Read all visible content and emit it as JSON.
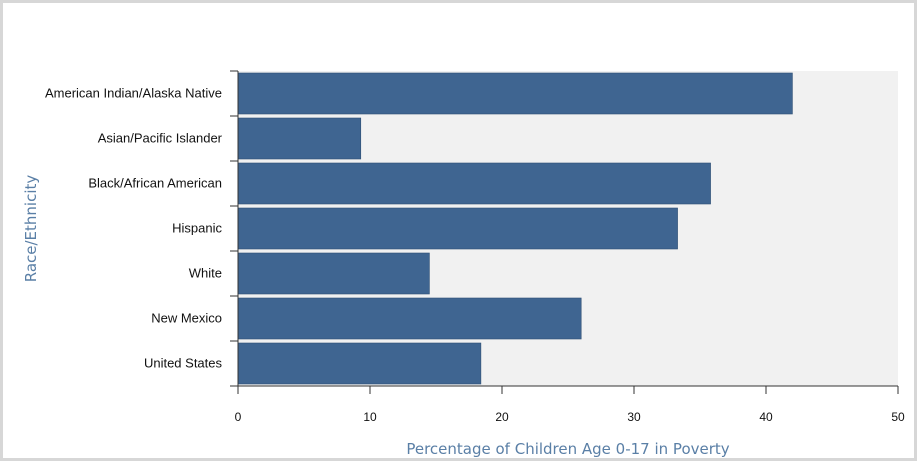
{
  "chart_data": {
    "type": "bar",
    "orientation": "horizontal",
    "categories": [
      "American Indian/Alaska Native",
      "Asian/Pacific Islander",
      "Black/African American",
      "Hispanic",
      "White",
      "New Mexico",
      "United States"
    ],
    "values": [
      42,
      9.3,
      35.8,
      33.3,
      14.5,
      26,
      18.4
    ],
    "xlabel": "Percentage of Children Age 0-17 in Poverty",
    "ylabel": "Race/Ethnicity",
    "xlim": [
      0,
      50
    ],
    "xticks": [
      "0",
      "10",
      "20",
      "30",
      "40",
      "50"
    ],
    "grid": false,
    "legend": "none",
    "colors": {
      "bar": "#3f6591",
      "axis_title": "#5a7fa6",
      "plot_background": "#f1f1f1",
      "axis_line": "#333333"
    }
  }
}
